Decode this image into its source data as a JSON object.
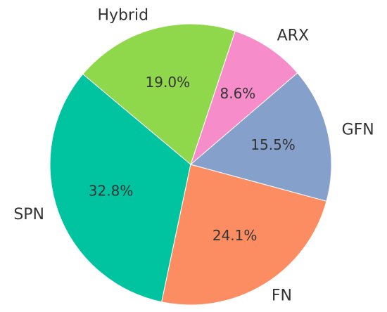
{
  "chart_data": {
    "type": "pie",
    "categories": [
      "SPN",
      "FN",
      "GFN",
      "ARX",
      "Hybrid"
    ],
    "values": [
      32.8,
      24.1,
      15.5,
      8.6,
      19.0
    ],
    "value_labels": [
      "32.8%",
      "24.1%",
      "15.5%",
      "8.6%",
      "19.0%"
    ],
    "colors": [
      "#00c4a0",
      "#fc8d62",
      "#86a0cc",
      "#f78ccb",
      "#90d84b"
    ]
  }
}
